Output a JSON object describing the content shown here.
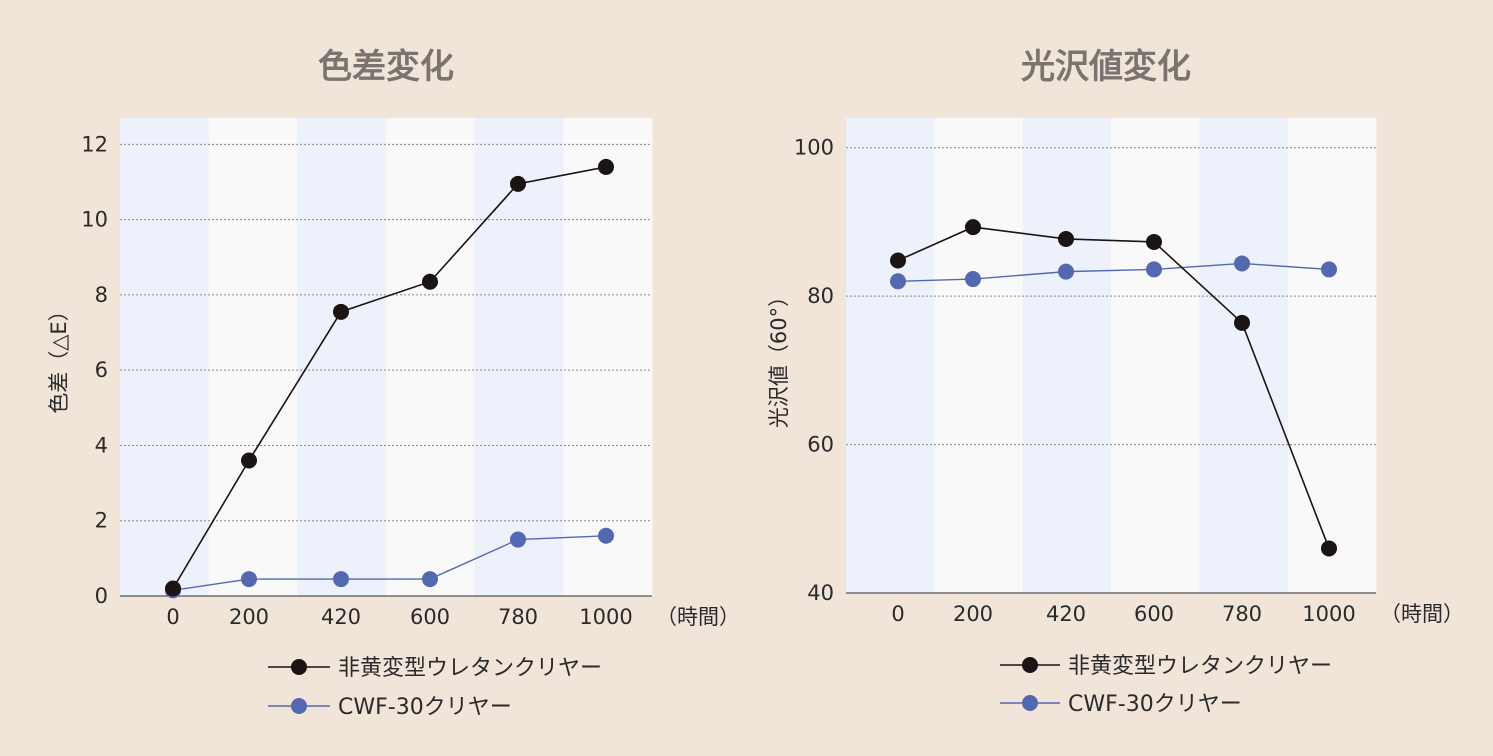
{
  "chart_data": [
    {
      "type": "line",
      "title": "色差変化",
      "ylabel": "色差（△E）",
      "x_unit_label": "（時間）",
      "categories": [
        "0",
        "200",
        "420",
        "600",
        "780",
        "1000"
      ],
      "ylim": [
        0,
        12.7
      ],
      "yticks": [
        0,
        2,
        4,
        6,
        8,
        10,
        12
      ],
      "grid": true,
      "legend_position": "bottom",
      "series": [
        {
          "name": "非黄変型ウレタンクリヤー",
          "color": "#1a1414",
          "values": [
            0.2,
            3.6,
            7.55,
            8.35,
            10.95,
            11.4
          ]
        },
        {
          "name": "CWF-30クリヤー",
          "color": "#5468b0",
          "values": [
            0.15,
            0.45,
            0.45,
            0.45,
            1.5,
            1.6
          ]
        }
      ]
    },
    {
      "type": "line",
      "title": "光沢値変化",
      "ylabel": "光沢値（60°）",
      "x_unit_label": "（時間）",
      "categories": [
        "0",
        "200",
        "420",
        "600",
        "780",
        "1000"
      ],
      "ylim": [
        40,
        104
      ],
      "yticks": [
        40,
        60,
        80,
        100
      ],
      "grid": true,
      "legend_position": "bottom",
      "series": [
        {
          "name": "非黄変型ウレタンクリヤー",
          "color": "#1a1414",
          "values": [
            84.8,
            89.3,
            87.7,
            87.3,
            76.4,
            46.0
          ]
        },
        {
          "name": "CWF-30クリヤー",
          "color": "#5468b0",
          "values": [
            82.0,
            82.3,
            83.3,
            83.6,
            84.4,
            83.6
          ]
        }
      ]
    }
  ]
}
